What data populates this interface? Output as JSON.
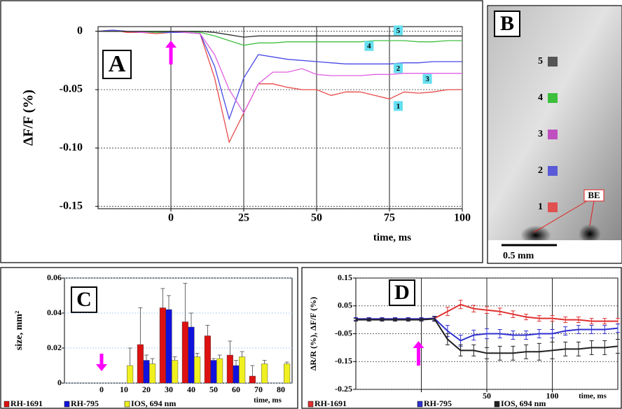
{
  "chart_data": [
    {
      "type": "line",
      "panel_label": "A",
      "xlabel": "time, ms",
      "ylabel": "ΔF/F (%)",
      "x": [
        -25,
        -20,
        -15,
        -10,
        -5,
        0,
        5,
        10,
        15,
        20,
        25,
        30,
        35,
        40,
        45,
        50,
        55,
        60,
        65,
        70,
        75,
        80,
        85,
        90,
        95,
        100
      ],
      "xlim": [
        -25,
        100
      ],
      "xticks": [
        0,
        25,
        50,
        75,
        100
      ],
      "ylim": [
        -0.152,
        0.004
      ],
      "yticks": [
        0,
        -0.05,
        {
          "value": -0.1,
          "label": "-0.10"
        },
        -0.15
      ],
      "grid": true,
      "series": [
        {
          "name": "1",
          "color": "#e84a4a",
          "values": [
            0,
            0.001,
            -0.001,
            -0.001,
            -0.002,
            -0.001,
            -0.001,
            -0.002,
            -0.04,
            -0.095,
            -0.07,
            -0.045,
            -0.045,
            -0.048,
            -0.05,
            -0.05,
            -0.055,
            -0.052,
            -0.052,
            -0.055,
            -0.058,
            -0.052,
            -0.053,
            -0.052,
            -0.05,
            -0.05
          ]
        },
        {
          "name": "2",
          "color": "#4a4ae8",
          "values": [
            0,
            0.001,
            0,
            -0.001,
            -0.001,
            -0.001,
            -0.001,
            -0.002,
            -0.03,
            -0.075,
            -0.04,
            -0.02,
            -0.022,
            -0.024,
            -0.025,
            -0.026,
            -0.027,
            -0.028,
            -0.028,
            -0.028,
            -0.028,
            -0.027,
            -0.027,
            -0.026,
            -0.026,
            -0.026
          ]
        },
        {
          "name": "3",
          "color": "#e060e0",
          "values": [
            0,
            0,
            0,
            -0.001,
            -0.001,
            0,
            -0.001,
            -0.002,
            -0.02,
            -0.05,
            -0.07,
            -0.045,
            -0.035,
            -0.035,
            -0.032,
            -0.037,
            -0.038,
            -0.038,
            -0.038,
            -0.037,
            -0.037,
            -0.036,
            -0.036,
            -0.036,
            -0.036,
            -0.036
          ]
        },
        {
          "name": "4",
          "color": "#40c040",
          "values": [
            0,
            0,
            0,
            0,
            -0.001,
            0,
            0,
            -0.001,
            -0.004,
            -0.008,
            -0.012,
            -0.01,
            -0.01,
            -0.009,
            -0.009,
            -0.009,
            -0.009,
            -0.009,
            -0.009,
            -0.008,
            -0.008,
            -0.008,
            -0.009,
            -0.009,
            -0.008,
            -0.008
          ]
        },
        {
          "name": "5",
          "color": "#303030",
          "values": [
            0,
            0,
            0,
            0,
            0,
            0,
            0,
            0,
            -0.001,
            -0.003,
            -0.005,
            -0.004,
            -0.004,
            -0.004,
            -0.004,
            -0.004,
            -0.004,
            -0.004,
            -0.004,
            -0.004,
            -0.004,
            -0.004,
            -0.004,
            -0.004,
            -0.004,
            -0.004
          ]
        }
      ]
    },
    {
      "type": "image",
      "panel_label": "B",
      "roi_labels": [
        "5",
        "4",
        "3",
        "2",
        "1"
      ],
      "roi_colors": [
        "#555555",
        "#3cbf3c",
        "#c050c0",
        "#5a5ad8",
        "#e05050"
      ],
      "annotation": "BE",
      "scale_bar": "0.5 mm"
    },
    {
      "type": "bar",
      "panel_label": "C",
      "xlabel": "time, ms",
      "ylabel": "size, mm²",
      "categories": [
        "0",
        "10",
        "20",
        "30",
        "40",
        "50",
        "60",
        "70",
        "80"
      ],
      "ylim": [
        0,
        0.06
      ],
      "yticks": [
        0,
        0.02,
        0.04,
        0.06
      ],
      "grid": true,
      "series": [
        {
          "name": "RH-1691",
          "color": "#dd1111",
          "values": [
            null,
            null,
            0.022,
            0.043,
            0.035,
            0.027,
            0.016,
            0.004,
            null
          ],
          "errors": [
            null,
            null,
            0.021,
            0.011,
            0.022,
            0.006,
            0.008,
            0.006,
            null
          ]
        },
        {
          "name": "RH-795",
          "color": "#1111dd",
          "values": [
            null,
            null,
            0.013,
            0.042,
            0.032,
            0.013,
            0.01,
            null,
            null
          ],
          "errors": [
            null,
            null,
            0.003,
            0.008,
            0.008,
            0.001,
            0.003,
            null,
            null
          ]
        },
        {
          "name": "IOS, 694 nm",
          "color": "#f0f020",
          "values": [
            null,
            0.01,
            0.011,
            0.013,
            0.015,
            0.014,
            0.015,
            0.011,
            0.011
          ],
          "errors": [
            null,
            0.01,
            0.003,
            0.002,
            0.002,
            0.002,
            0.003,
            0.002,
            0.001
          ]
        }
      ]
    },
    {
      "type": "line",
      "panel_label": "D",
      "xlabel": "time, ms",
      "ylabel": "ΔR/R (%), ΔF/F (%)",
      "x": [
        -50,
        -40,
        -30,
        -20,
        -10,
        0,
        10,
        20,
        30,
        40,
        50,
        60,
        70,
        80,
        90,
        100,
        110,
        120,
        130,
        140,
        150
      ],
      "xlim": [
        -50,
        150
      ],
      "xticks": [
        {
          "value": 0,
          "label": null
        },
        50,
        100
      ],
      "ylim": [
        -0.25,
        0.15
      ],
      "yticks": [
        0.15,
        0.05,
        -0.05,
        -0.15,
        -0.25
      ],
      "grid": true,
      "series": [
        {
          "name": "RH-1691",
          "color": "#e03030",
          "values": [
            0.003,
            0.003,
            0.003,
            0.003,
            0.003,
            0.003,
            0.005,
            0.03,
            0.055,
            0.04,
            0.035,
            0.03,
            0.02,
            0.01,
            0.005,
            0.005,
            0.0,
            0.0,
            -0.005,
            -0.005,
            -0.005
          ],
          "errors": [
            0.005,
            0.005,
            0.005,
            0.005,
            0.005,
            0.005,
            0.008,
            0.015,
            0.015,
            0.012,
            0.012,
            0.012,
            0.012,
            0.01,
            0.01,
            0.01,
            0.01,
            0.01,
            0.01,
            0.01,
            0.01
          ]
        },
        {
          "name": "RH-795",
          "color": "#3030d0",
          "values": [
            0.003,
            0.003,
            0.003,
            0.003,
            0.003,
            0.003,
            0.005,
            -0.04,
            -0.075,
            -0.055,
            -0.05,
            -0.05,
            -0.055,
            -0.055,
            -0.05,
            -0.05,
            -0.04,
            -0.035,
            -0.035,
            -0.035,
            -0.03
          ],
          "errors": [
            0.005,
            0.005,
            0.005,
            0.005,
            0.005,
            0.005,
            0.008,
            0.02,
            0.02,
            0.018,
            0.018,
            0.015,
            0.015,
            0.015,
            0.015,
            0.015,
            0.015,
            0.015,
            0.015,
            0.015,
            0.015
          ]
        },
        {
          "name": "IOS, 694 nm",
          "color": "#202020",
          "values": [
            0,
            0,
            0,
            0,
            0,
            0,
            0.003,
            -0.07,
            -0.11,
            -0.11,
            -0.12,
            -0.12,
            -0.12,
            -0.115,
            -0.115,
            -0.11,
            -0.105,
            -0.105,
            -0.1,
            -0.1,
            -0.095
          ],
          "errors": [
            0.005,
            0.005,
            0.005,
            0.005,
            0.005,
            0.005,
            0.008,
            0.02,
            0.02,
            0.02,
            0.02,
            0.025,
            0.025,
            0.025,
            0.03,
            0.03,
            0.025,
            0.025,
            0.025,
            0.025,
            0.025
          ]
        }
      ]
    }
  ]
}
